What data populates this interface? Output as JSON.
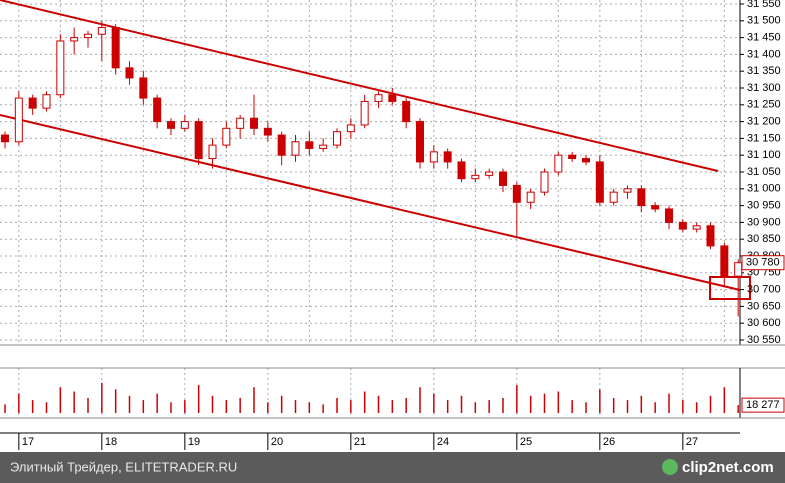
{
  "chart_data": {
    "type": "candlestick",
    "categories": [
      null,
      "17",
      null,
      null,
      null,
      null,
      null,
      "18",
      null,
      null,
      null,
      null,
      null,
      "19",
      null,
      null,
      null,
      null,
      null,
      "20",
      null,
      null,
      null,
      null,
      null,
      "21",
      null,
      null,
      null,
      null,
      null,
      "24",
      null,
      null,
      null,
      null,
      null,
      "25",
      null,
      null,
      null,
      null,
      null,
      "26",
      null,
      null,
      null,
      null,
      null,
      "27",
      null,
      null,
      null,
      null
    ],
    "open": [
      31160,
      31140,
      31270,
      31240,
      31280,
      31440,
      31450,
      31460,
      31480,
      31360,
      31330,
      31270,
      31200,
      31180,
      31200,
      31090,
      31130,
      31180,
      31210,
      31180,
      31160,
      31100,
      31140,
      31120,
      31130,
      31170,
      31190,
      31260,
      31280,
      31260,
      31200,
      31080,
      31110,
      31080,
      31030,
      31040,
      31050,
      31010,
      30960,
      30990,
      31050,
      31100,
      31090,
      31080,
      30960,
      30990,
      31000,
      30950,
      30940,
      30900,
      30880,
      30890,
      30830,
      30740
    ],
    "high": [
      31170,
      31290,
      31280,
      31290,
      31460,
      31480,
      31470,
      31500,
      31490,
      31380,
      31350,
      31280,
      31210,
      31220,
      31210,
      31150,
      31200,
      31220,
      31280,
      31200,
      31170,
      31160,
      31170,
      31150,
      31180,
      31210,
      31280,
      31290,
      31300,
      31270,
      31210,
      31130,
      31120,
      31090,
      31060,
      31060,
      31060,
      31020,
      31000,
      31060,
      31110,
      31110,
      31100,
      31100,
      31000,
      31010,
      31010,
      30960,
      30950,
      30910,
      30900,
      30900,
      30840,
      30790
    ],
    "low": [
      31120,
      31130,
      31220,
      31230,
      31270,
      31400,
      31420,
      31380,
      31340,
      31310,
      31250,
      31180,
      31160,
      31170,
      31070,
      31060,
      31120,
      31150,
      31160,
      31140,
      31070,
      31080,
      31100,
      31110,
      31120,
      31150,
      31180,
      31240,
      31250,
      31180,
      31060,
      31060,
      31060,
      31020,
      31020,
      31030,
      30990,
      30860,
      30940,
      30980,
      31040,
      31080,
      31070,
      30950,
      30950,
      30970,
      30930,
      30930,
      30880,
      30870,
      30870,
      30820,
      30710,
      30620
    ],
    "close": [
      31140,
      31270,
      31240,
      31280,
      31440,
      31450,
      31460,
      31480,
      31360,
      31330,
      31270,
      31200,
      31180,
      31200,
      31090,
      31130,
      31180,
      31210,
      31180,
      31160,
      31100,
      31140,
      31120,
      31130,
      31170,
      31190,
      31260,
      31280,
      31260,
      31200,
      31080,
      31110,
      31080,
      31030,
      31040,
      31050,
      31010,
      30960,
      30990,
      31050,
      31100,
      31090,
      31080,
      30960,
      30990,
      31000,
      30950,
      30940,
      30900,
      30880,
      30890,
      30830,
      30740,
      30780
    ],
    "last_label": "30 780",
    "color": "#cc0000",
    "ylim": [
      30550,
      31550
    ],
    "yticks": [
      {
        "value": 30550,
        "label": "30 550"
      },
      {
        "value": 30600,
        "label": "30 600"
      },
      {
        "value": 30650,
        "label": "30 650"
      },
      {
        "value": 30700,
        "label": "30 700"
      },
      {
        "value": 30750,
        "label": "30 750"
      },
      {
        "value": 30800,
        "label": "30 800"
      },
      {
        "value": 30850,
        "label": "30 850"
      },
      {
        "value": 30900,
        "label": "30 900"
      },
      {
        "value": 30950,
        "label": "30 950"
      },
      {
        "value": 31000,
        "label": "31 000"
      },
      {
        "value": 31050,
        "label": "31 050"
      },
      {
        "value": 31100,
        "label": "31 100"
      },
      {
        "value": 31150,
        "label": "31 150"
      },
      {
        "value": 31200,
        "label": "31 200"
      },
      {
        "value": 31250,
        "label": "31 250"
      },
      {
        "value": 31300,
        "label": "31 300"
      },
      {
        "value": 31350,
        "label": "31 350"
      },
      {
        "value": 31400,
        "label": "31 400"
      },
      {
        "value": 31450,
        "label": "31 450"
      },
      {
        "value": 31500,
        "label": "31 500"
      },
      {
        "value": 31550,
        "label": "31 550"
      }
    ],
    "grid": true,
    "volume": {
      "values": [
        20000,
        45000,
        30000,
        25000,
        60000,
        50000,
        35000,
        70000,
        55000,
        40000,
        30000,
        45000,
        25000,
        30000,
        65000,
        40000,
        30000,
        35000,
        60000,
        25000,
        40000,
        30000,
        25000,
        20000,
        35000,
        30000,
        50000,
        40000,
        30000,
        35000,
        60000,
        45000,
        30000,
        40000,
        25000,
        30000,
        35000,
        65000,
        40000,
        45000,
        50000,
        30000,
        25000,
        55000,
        35000,
        30000,
        40000,
        25000,
        45000,
        30000,
        25000,
        40000,
        60000,
        18277
      ],
      "last_label": "18 277",
      "ylim": [
        0,
        100000
      ]
    },
    "footer": {
      "source": "Элитный Трейдер, ELITETRADER.RU",
      "logo": "clip2net.com"
    }
  }
}
